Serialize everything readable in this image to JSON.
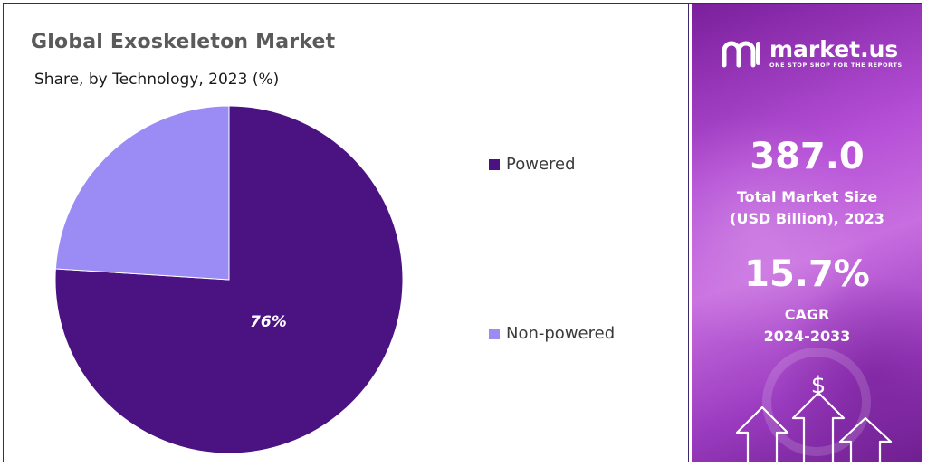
{
  "chart_data": {
    "type": "pie",
    "title": "Global Exoskeleton Market",
    "subtitle": "Share, by Technology, 2023 (%)",
    "slices": [
      {
        "name": "Powered",
        "value": 76,
        "color": "#4b1382",
        "label": "76%"
      },
      {
        "name": "Non-powered",
        "value": 24,
        "color": "#9b8cf5",
        "label": ""
      }
    ],
    "legend_position": "right"
  },
  "sidebar": {
    "brand_name": "market.us",
    "tagline": "ONE STOP SHOP FOR THE REPORTS",
    "market_size_value": "387.0",
    "market_size_label_line1": "Total Market Size",
    "market_size_label_line2": "(USD Billion), 2023",
    "cagr_value": "15.7%",
    "cagr_label_line1": "CAGR",
    "cagr_label_line2": "2024-2033",
    "dollar_symbol": "$"
  }
}
